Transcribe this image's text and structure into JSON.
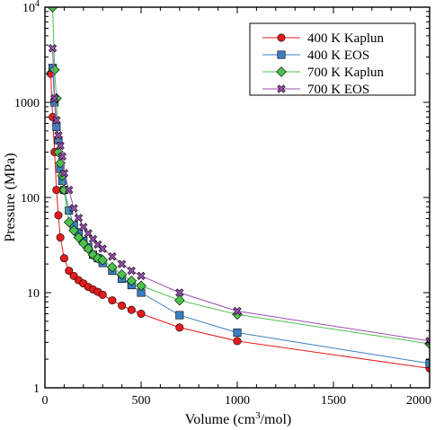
{
  "chart_data": {
    "type": "line",
    "xlabel_main": "Volume (cm",
    "xlabel_sup": "3",
    "xlabel_tail": "/mol)",
    "ylabel": "Pressure (MPa)",
    "xlim": [
      0,
      2000
    ],
    "ylim": [
      1,
      10000
    ],
    "yscale": "log",
    "x_ticks": [
      0,
      500,
      1000,
      1500,
      2000
    ],
    "x_tick_labels": [
      "0",
      "500",
      "1000",
      "1500",
      "2000"
    ],
    "y_ticks": [
      1,
      10,
      100,
      1000
    ],
    "y_tick_labels": [
      "1",
      "10",
      "100",
      "1000"
    ],
    "y_top_label_base": "10",
    "y_top_label_exp": "4",
    "legend_position": "top-right",
    "series": [
      {
        "name": "400 K Kaplun",
        "color": "#e41a1c",
        "marker": "circle",
        "x": [
          30,
          40,
          50,
          60,
          70,
          80,
          100,
          125,
          150,
          175,
          200,
          225,
          250,
          275,
          300,
          350,
          400,
          450,
          500,
          700,
          1000,
          2000
        ],
        "y": [
          2000,
          700,
          300,
          120,
          65,
          38,
          23,
          17,
          15,
          13.5,
          12.5,
          11.5,
          10.8,
          10.2,
          9.5,
          8.3,
          7.3,
          6.6,
          6.0,
          4.3,
          3.1,
          1.6
        ]
      },
      {
        "name": "400 K EOS",
        "color": "#3a7fc1",
        "marker": "square",
        "x": [
          40,
          50,
          60,
          70,
          80,
          90,
          100,
          125,
          150,
          175,
          200,
          225,
          250,
          275,
          300,
          350,
          400,
          450,
          500,
          700,
          1000,
          2000
        ],
        "y": [
          2300,
          1000,
          550,
          400,
          200,
          150,
          120,
          73,
          51,
          43,
          35,
          30,
          25,
          23,
          20.5,
          17,
          14,
          12,
          10,
          5.8,
          3.8,
          1.8
        ]
      },
      {
        "name": "700 K Kaplun",
        "color": "#4cc24c",
        "marker": "diamond",
        "x": [
          40,
          50,
          60,
          70,
          80,
          90,
          100,
          125,
          150,
          175,
          200,
          225,
          250,
          275,
          300,
          350,
          400,
          450,
          500,
          700,
          1000,
          2000
        ],
        "y": [
          10000,
          2200,
          1100,
          300,
          230,
          170,
          120,
          55,
          45,
          38,
          33,
          29,
          25,
          23,
          22,
          18.5,
          15.5,
          13.3,
          11.8,
          8.3,
          5.9,
          2.9
        ]
      },
      {
        "name": "700 K EOS",
        "color": "#9a4fb0",
        "marker": "x",
        "x": [
          40,
          50,
          60,
          70,
          80,
          90,
          100,
          125,
          150,
          175,
          200,
          225,
          250,
          275,
          300,
          350,
          400,
          450,
          500,
          700,
          1000,
          2000
        ],
        "y": [
          3700,
          1100,
          650,
          450,
          350,
          270,
          180,
          120,
          77,
          61,
          49,
          42,
          36.5,
          32,
          29,
          24,
          20,
          17,
          15,
          10,
          6.4,
          3.1
        ]
      }
    ]
  }
}
